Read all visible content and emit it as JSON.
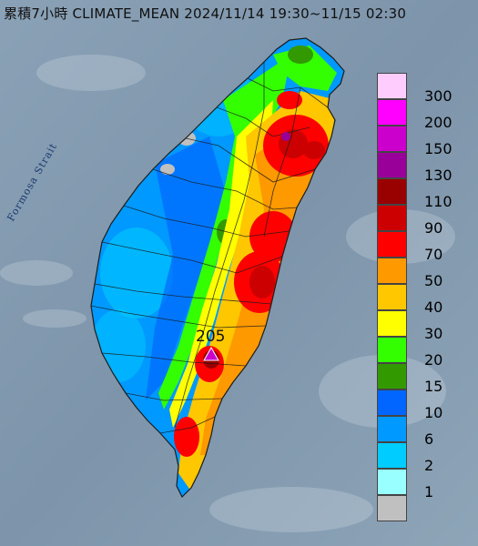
{
  "title": "累積7小時 CLIMATE_MEAN 2024/11/14 19:30~11/15 02:30",
  "map": {
    "strait_label": "Formosa Strait",
    "station_max_label": "205",
    "colors": {
      "sea": "#7e95ab",
      "land_default": "#9e9e9e",
      "lines": "#1c1c1c"
    }
  },
  "legend": {
    "items": [
      {
        "label": "300",
        "color": "#ffcdfd"
      },
      {
        "label": "200",
        "color": "#ff00ff"
      },
      {
        "label": "150",
        "color": "#cc00cc"
      },
      {
        "label": "130",
        "color": "#990099"
      },
      {
        "label": "110",
        "color": "#990000"
      },
      {
        "label": "90",
        "color": "#cc0000"
      },
      {
        "label": "70",
        "color": "#ff0000"
      },
      {
        "label": "50",
        "color": "#ff9900"
      },
      {
        "label": "40",
        "color": "#ffc700"
      },
      {
        "label": "30",
        "color": "#ffff00"
      },
      {
        "label": "20",
        "color": "#33ff00"
      },
      {
        "label": "15",
        "color": "#339900"
      },
      {
        "label": "10",
        "color": "#0066ff"
      },
      {
        "label": "6",
        "color": "#0099ff"
      },
      {
        "label": "2",
        "color": "#00ccff"
      },
      {
        "label": "1",
        "color": "#99ffff"
      },
      {
        "label": "",
        "color": "#c0c0c0"
      }
    ]
  }
}
